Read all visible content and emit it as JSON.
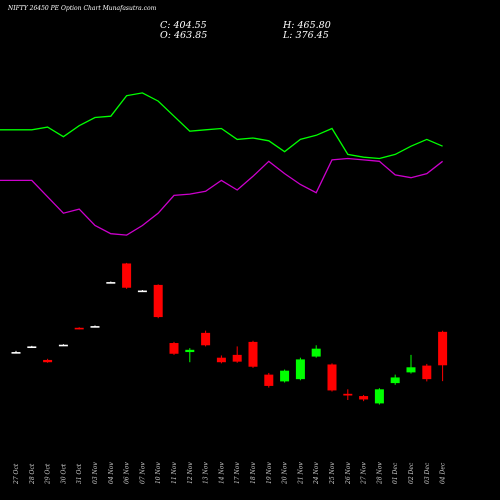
{
  "header": {
    "title": "NIFTY 26450  PE Option  Chart Munafasutra.com",
    "close_text": "C: 404.55",
    "open_text": "O: 463.85",
    "high_text": "H: 465.80",
    "low_text": "L: 376.45"
  },
  "colors": {
    "background": "#000000",
    "up": "#00ff00",
    "down": "#ff0000",
    "neutral": "#ffffff",
    "line_green": "#00ff00",
    "line_magenta": "#cc00cc",
    "label": "#cccccc"
  },
  "chart_data": {
    "type": "candlestick",
    "title": "NIFTY 26450  PE Option  Chart Munafasutra.com",
    "categories": [
      "27 Oct",
      "28 Oct",
      "29 Oct",
      "30 Oct",
      "31 Oct",
      "03 Nov",
      "04 Nov",
      "06 Nov",
      "07 Nov",
      "10 Nov",
      "11 Nov",
      "12 Nov",
      "13 Nov",
      "14 Nov",
      "17 Nov",
      "18 Nov",
      "19 Nov",
      "20 Nov",
      "21 Nov",
      "24 Nov",
      "25 Nov",
      "26 Nov",
      "27 Nov",
      "28 Nov",
      "01 Dec",
      "02 Dec",
      "03 Dec",
      "04 Dec"
    ],
    "candles": [
      {
        "o": 428,
        "h": 430,
        "l": 426,
        "c": 427
      },
      {
        "o": 437,
        "h": 439,
        "l": 436,
        "c": 438
      },
      {
        "o": 414,
        "h": 416,
        "l": 409,
        "c": 410
      },
      {
        "o": 441,
        "h": 442,
        "l": 440,
        "c": 441
      },
      {
        "o": 471,
        "h": 472,
        "l": 468,
        "c": 469
      },
      {
        "o": 474,
        "h": 475,
        "l": 472,
        "c": 474
      },
      {
        "o": 552,
        "h": 553,
        "l": 550,
        "c": 551
      },
      {
        "o": 585,
        "h": 586,
        "l": 540,
        "c": 542
      },
      {
        "o": 537,
        "h": 538,
        "l": 535,
        "c": 536
      },
      {
        "o": 547,
        "h": 548,
        "l": 488,
        "c": 490
      },
      {
        "o": 444,
        "h": 446,
        "l": 423,
        "c": 425
      },
      {
        "o": 428,
        "h": 435,
        "l": 410,
        "c": 432
      },
      {
        "o": 462,
        "h": 466,
        "l": 438,
        "c": 440
      },
      {
        "o": 418,
        "h": 422,
        "l": 408,
        "c": 410
      },
      {
        "o": 423,
        "h": 438,
        "l": 409,
        "c": 411
      },
      {
        "o": 446,
        "h": 448,
        "l": 400,
        "c": 402
      },
      {
        "o": 388,
        "h": 391,
        "l": 365,
        "c": 368
      },
      {
        "o": 376,
        "h": 397,
        "l": 374,
        "c": 395
      },
      {
        "o": 380,
        "h": 418,
        "l": 378,
        "c": 415
      },
      {
        "o": 420,
        "h": 440,
        "l": 418,
        "c": 434
      },
      {
        "o": 406,
        "h": 408,
        "l": 358,
        "c": 360
      },
      {
        "o": 354,
        "h": 362,
        "l": 343,
        "c": 351
      },
      {
        "o": 350,
        "h": 352,
        "l": 341,
        "c": 344
      },
      {
        "o": 337,
        "h": 364,
        "l": 335,
        "c": 362
      },
      {
        "o": 373,
        "h": 388,
        "l": 370,
        "c": 383
      },
      {
        "o": 392,
        "h": 423,
        "l": 390,
        "c": 401
      },
      {
        "o": 404,
        "h": 407,
        "l": 376,
        "c": 380
      },
      {
        "o": 463.85,
        "h": 465.8,
        "l": 376.45,
        "c": 404.55
      }
    ],
    "lines": [
      {
        "color": "green",
        "values": [
          55,
          55,
          57,
          50,
          58,
          64,
          65,
          80,
          82,
          76,
          65,
          54,
          55,
          56,
          48,
          49,
          47,
          39,
          48,
          51,
          56,
          37,
          35,
          34,
          37,
          43,
          48,
          43
        ]
      },
      {
        "color": "magenta",
        "values": [
          18,
          18,
          6,
          -6,
          -3,
          -15,
          -21,
          -22,
          -15,
          -6,
          7,
          8,
          10,
          18,
          11,
          21,
          32,
          23,
          15,
          9,
          33,
          34,
          33,
          32,
          22,
          20,
          23,
          32
        ]
      }
    ]
  }
}
